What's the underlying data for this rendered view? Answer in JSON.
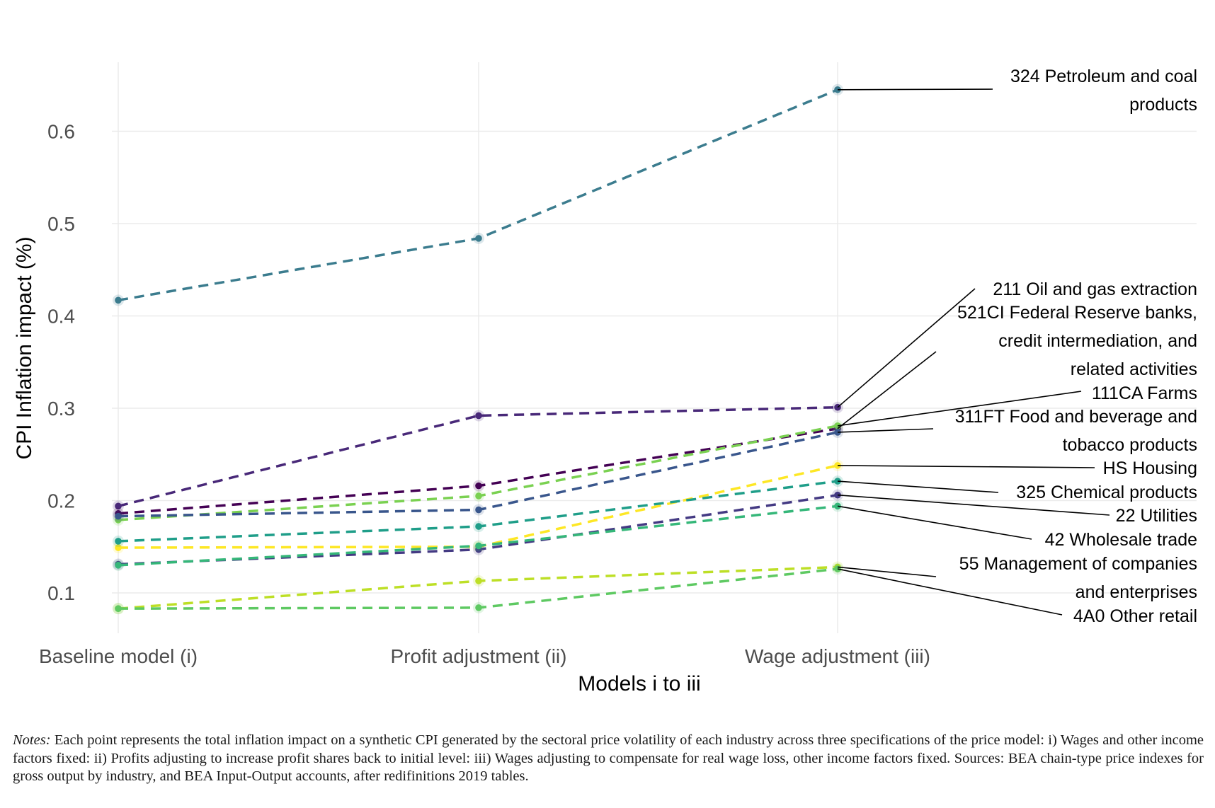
{
  "chart_data": {
    "type": "line",
    "title": "",
    "xlabel": "Models i to iii",
    "ylabel": "CPI Inflation impact (%)",
    "categories": [
      "Baseline model (i)",
      "Profit adjustment (ii)",
      "Wage adjustment (iii)"
    ],
    "ylim": [
      0.04,
      0.7
    ],
    "yticks": [
      0.1,
      0.2,
      0.3,
      0.4,
      0.5,
      0.6
    ],
    "ytick_labels": [
      "0.1",
      "0.2",
      "0.3",
      "0.4",
      "0.5",
      "0.6"
    ],
    "grid": true,
    "line_style": "dashed",
    "series": [
      {
        "name": "324 Petroleum and coal products",
        "values": [
          0.417,
          0.484,
          0.645
        ],
        "color": "#3b7c8e"
      },
      {
        "name": "211 Oil and gas extraction",
        "values": [
          0.194,
          0.292,
          0.301
        ],
        "color": "#482878"
      },
      {
        "name": "521CI Federal Reserve banks, credit intermediation, and related activities",
        "values": [
          0.186,
          0.216,
          0.278
        ],
        "color": "#440154"
      },
      {
        "name": "111CA Farms",
        "values": [
          0.179,
          0.205,
          0.281
        ],
        "color": "#7ad151"
      },
      {
        "name": "311FT Food and beverage and tobacco products",
        "values": [
          0.183,
          0.19,
          0.274
        ],
        "color": "#39568c"
      },
      {
        "name": "HS Housing",
        "values": [
          0.149,
          0.15,
          0.238
        ],
        "color": "#fde725"
      },
      {
        "name": "325 Chemical products",
        "values": [
          0.156,
          0.172,
          0.221
        ],
        "color": "#1f9e89"
      },
      {
        "name": "22 Utilities",
        "values": [
          0.131,
          0.147,
          0.206
        ],
        "color": "#443a83"
      },
      {
        "name": "42 Wholesale trade",
        "values": [
          0.13,
          0.151,
          0.194
        ],
        "color": "#35b779"
      },
      {
        "name": "55 Management of companies and enterprises",
        "values": [
          0.083,
          0.113,
          0.128
        ],
        "color": "#bddf26"
      },
      {
        "name": "4A0 Other retail",
        "values": [
          0.083,
          0.084,
          0.126
        ],
        "color": "#5ec962"
      }
    ],
    "annotations": [
      [
        "324 Petroleum and coal",
        "products"
      ],
      [
        "211 Oil and gas extraction"
      ],
      [
        "521CI Federal Reserve banks,",
        "credit intermediation, and",
        "related activities"
      ],
      [
        "111CA Farms"
      ],
      [
        "311FT Food and beverage and",
        "tobacco products"
      ],
      [
        "HS Housing"
      ],
      [
        "325 Chemical products"
      ],
      [
        "22 Utilities"
      ],
      [
        "42 Wholesale trade"
      ],
      [
        "55 Management of companies",
        "and enterprises"
      ],
      [
        "4A0 Other retail"
      ]
    ]
  },
  "notes": {
    "prefix": "Notes:",
    "text": "Each point represents the total inflation impact on a synthetic CPI generated by the sectoral price volatility of each industry across three specifications of the price model: i) Wages and other income factors fixed: ii) Profits adjusting to increase profit shares back to initial level: iii) Wages adjusting to compensate for real wage loss, other income factors fixed. Sources: BEA chain-type price indexes for gross output by industry, and BEA Input-Output accounts, after redifinitions 2019 tables."
  }
}
